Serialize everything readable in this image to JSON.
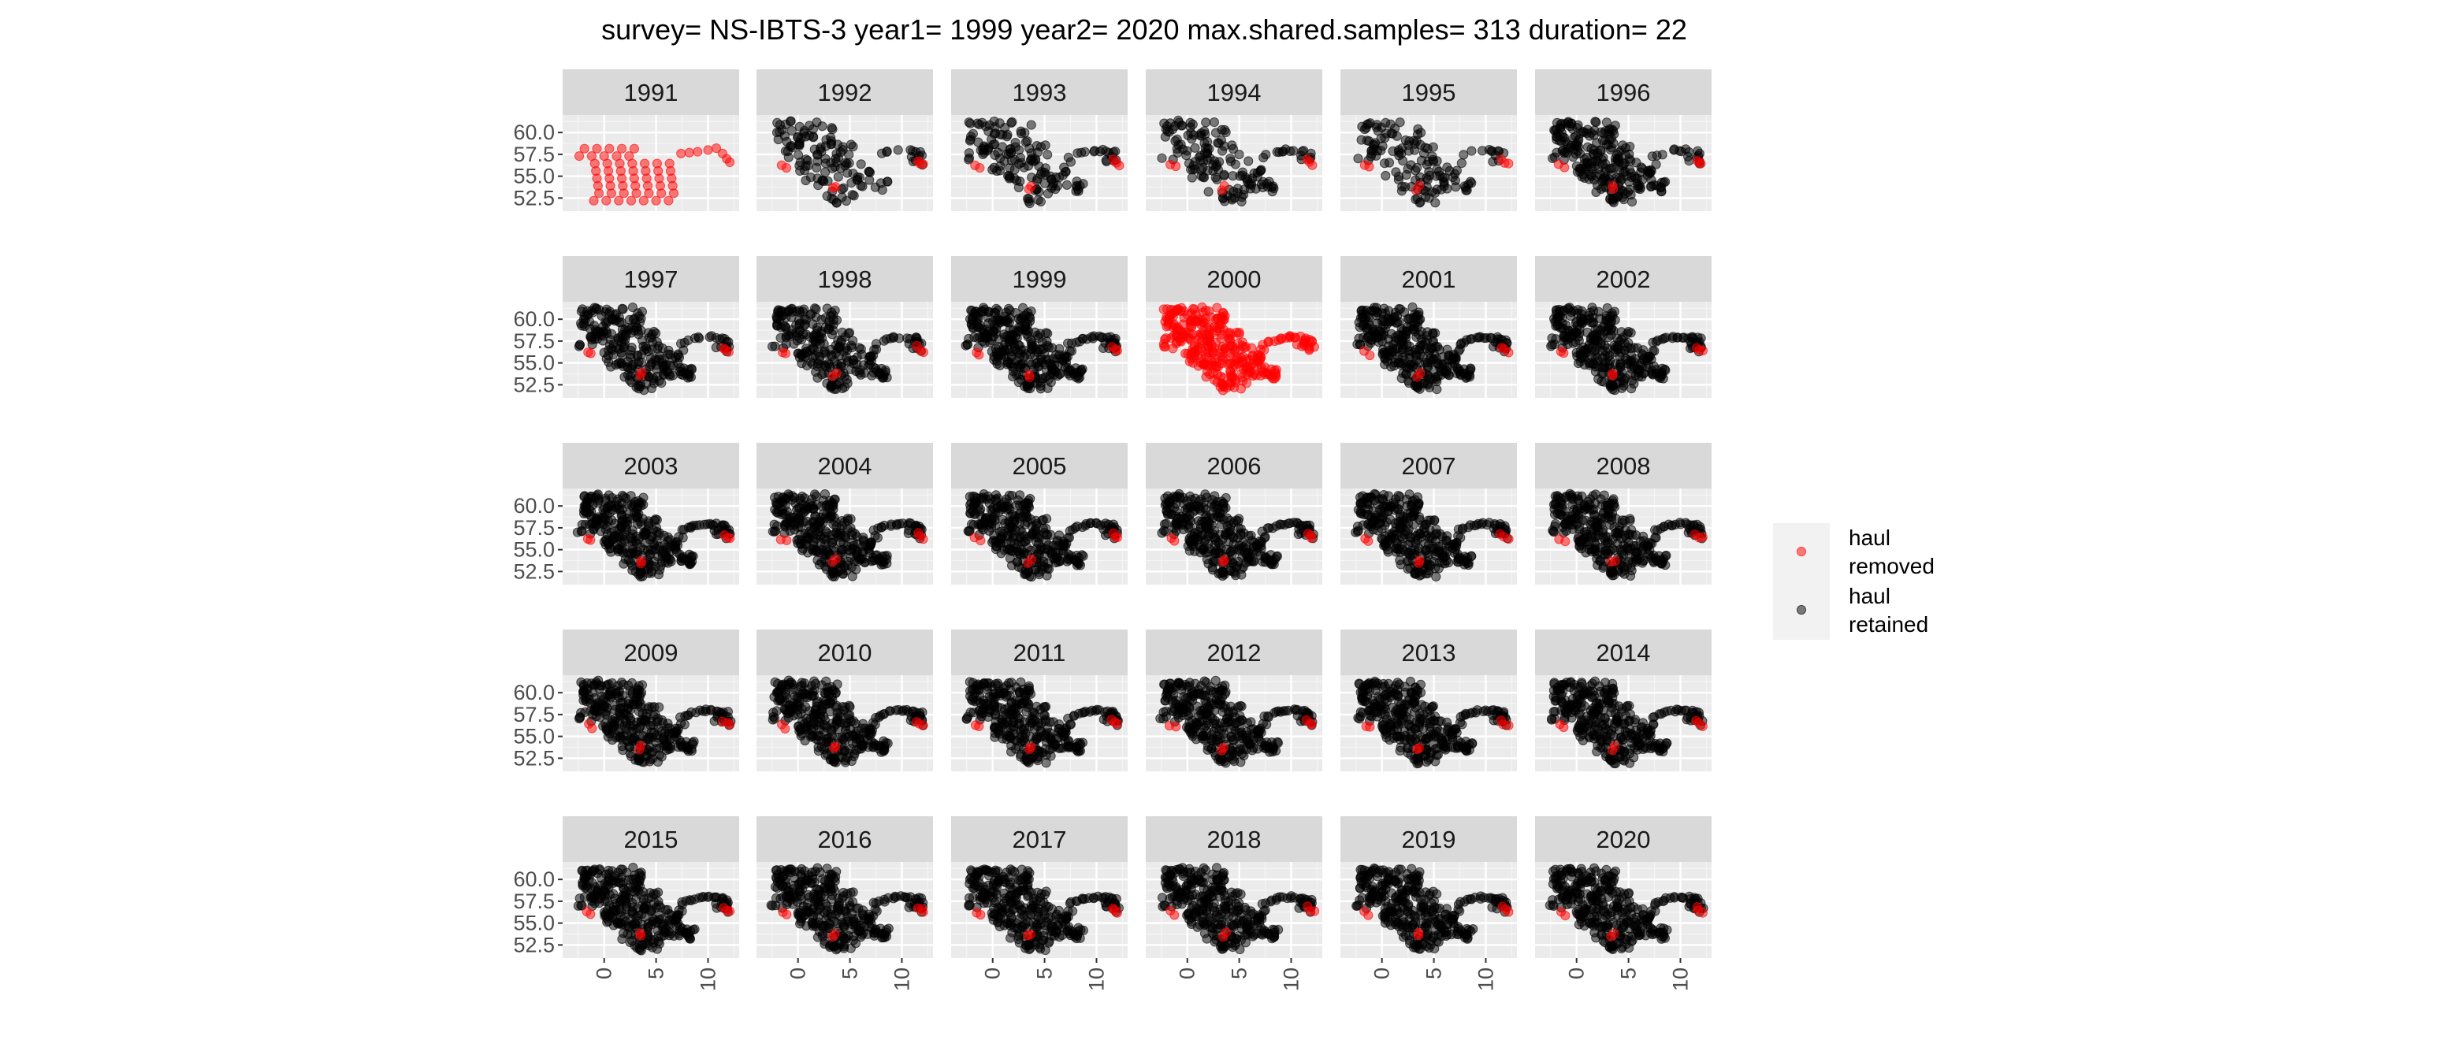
{
  "chart_data": {
    "type": "scatter",
    "title": "survey= NS-IBTS-3 year1= 1999 year2= 2020 max.shared.samples= 313 duration= 22",
    "xlabel": "",
    "ylabel": "",
    "facet_variable": "year",
    "facet_columns": 6,
    "panels": [
      "1991",
      "1992",
      "1993",
      "1994",
      "1995",
      "1996",
      "1997",
      "1998",
      "1999",
      "2000",
      "2001",
      "2002",
      "2003",
      "2004",
      "2005",
      "2006",
      "2007",
      "2008",
      "2009",
      "2010",
      "2011",
      "2012",
      "2013",
      "2014",
      "2015",
      "2016",
      "2017",
      "2018",
      "2019",
      "2020"
    ],
    "xlim": [
      -4,
      13
    ],
    "ylim": [
      51,
      62
    ],
    "x_ticks": [
      0,
      5,
      10
    ],
    "x_tick_labels": [
      "0",
      "5",
      "10"
    ],
    "y_ticks": [
      52.5,
      55.0,
      57.5,
      60.0
    ],
    "y_tick_labels": [
      "52.5",
      "55.0",
      "57.5",
      "60.0"
    ],
    "grid": true,
    "legend_position": "right",
    "series": [
      {
        "name": "haul\nremoved",
        "label_lines": [
          "haul",
          "removed"
        ],
        "color": "#ff0000"
      },
      {
        "name": "haul\nretained",
        "label_lines": [
          "haul",
          "retained"
        ],
        "color": "#000000"
      }
    ],
    "point_alpha": 0.5
  }
}
